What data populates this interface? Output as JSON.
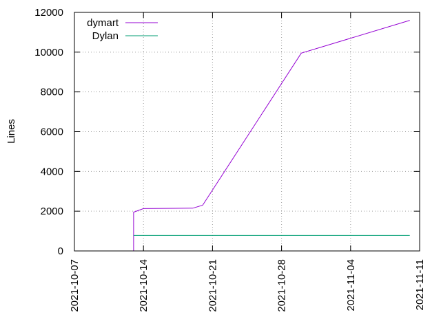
{
  "chart_data": {
    "type": "line",
    "title": "",
    "xlabel": "",
    "ylabel": "Lines",
    "x_axis": {
      "type": "date",
      "range": [
        "2021-10-07",
        "2021-11-11"
      ],
      "ticks": [
        "2021-10-07",
        "2021-10-14",
        "2021-10-21",
        "2021-10-28",
        "2021-11-04",
        "2021-11-11"
      ]
    },
    "ylim": [
      0,
      12000
    ],
    "yticks": [
      0,
      2000,
      4000,
      6000,
      8000,
      10000,
      12000
    ],
    "grid": "dotted",
    "legend_position": "top-left",
    "series": [
      {
        "name": "dymart",
        "color": "#9400d3",
        "points": [
          {
            "x": "2021-10-13",
            "y": 0
          },
          {
            "x": "2021-10-13",
            "y": 1950
          },
          {
            "x": "2021-10-14",
            "y": 2130
          },
          {
            "x": "2021-10-19",
            "y": 2150
          },
          {
            "x": "2021-10-20",
            "y": 2300
          },
          {
            "x": "2021-10-30",
            "y": 9950
          },
          {
            "x": "2021-11-10",
            "y": 11600
          }
        ]
      },
      {
        "name": "Dylan",
        "color": "#009e73",
        "points": [
          {
            "x": "2021-10-13",
            "y": 780
          },
          {
            "x": "2021-11-10",
            "y": 780
          }
        ]
      }
    ]
  }
}
